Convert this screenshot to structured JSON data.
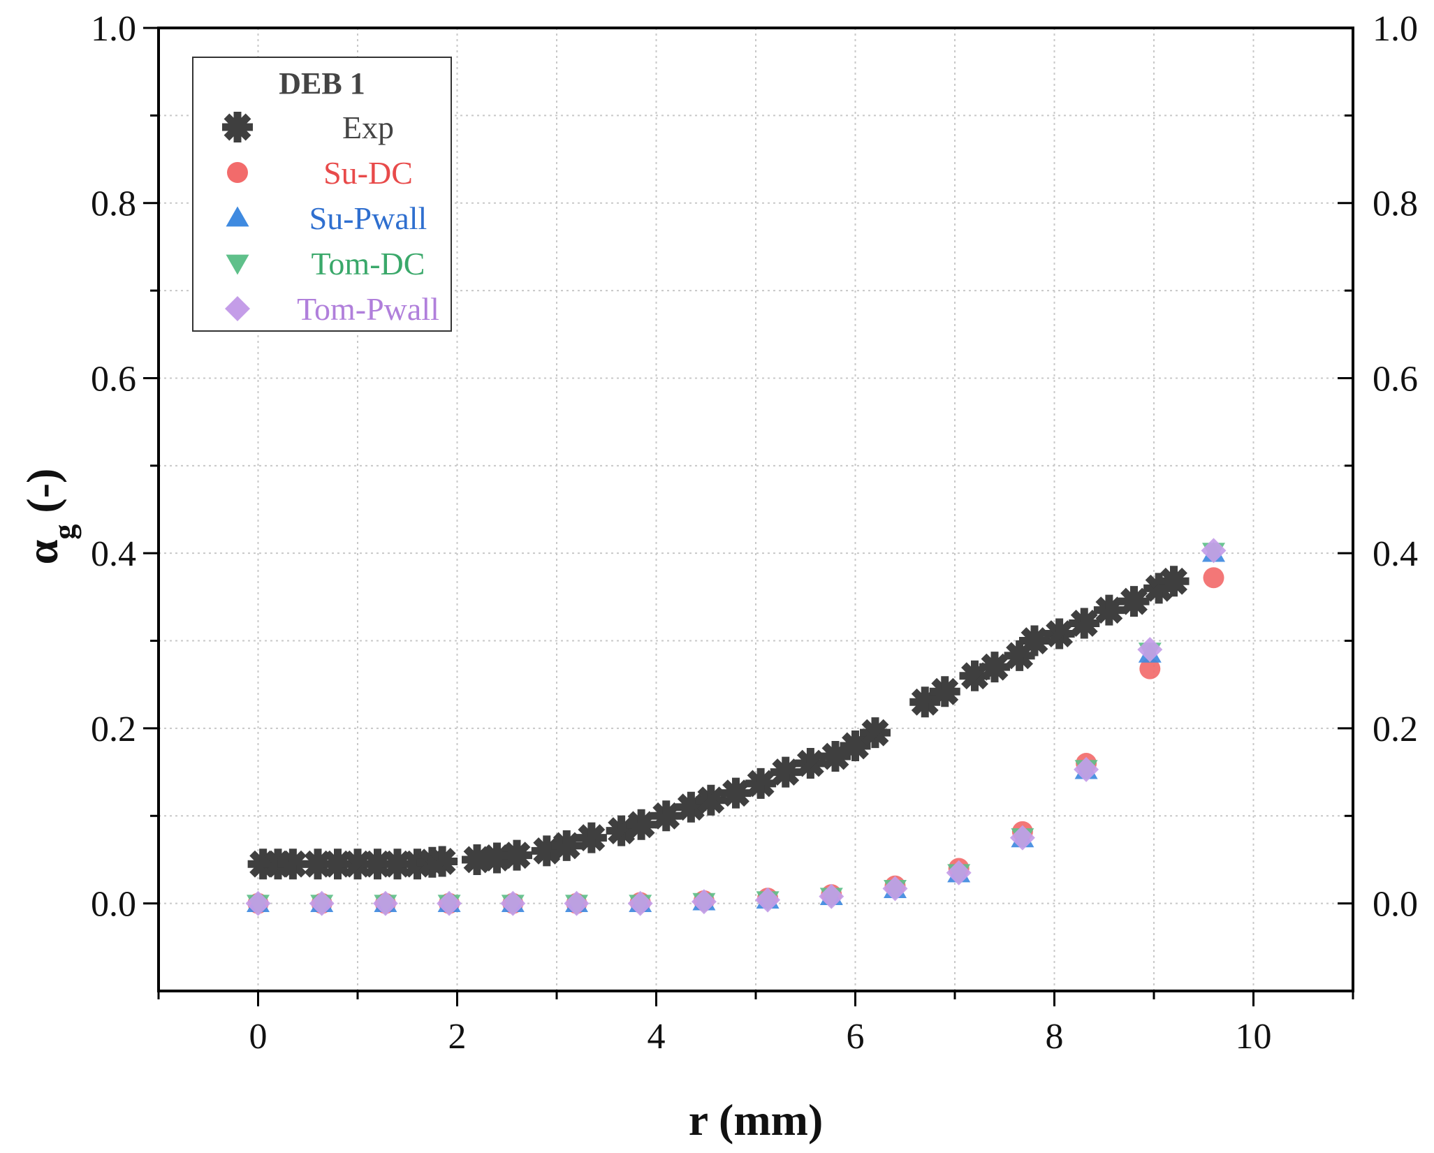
{
  "chart_data": {
    "type": "scatter",
    "title": "",
    "xlabel": "r (mm)",
    "ylabel_symbol": "α",
    "ylabel_subscript": "g",
    "ylabel_unit": "(-)",
    "xlim": [
      -1,
      11
    ],
    "ylim": [
      -0.1,
      1.0
    ],
    "x_ticks": [
      0,
      2,
      4,
      6,
      8,
      10
    ],
    "x_tick_labels": [
      "0",
      "2",
      "4",
      "6",
      "8",
      "10"
    ],
    "y_ticks": [
      0.0,
      0.2,
      0.4,
      0.6,
      0.8,
      1.0
    ],
    "y_tick_labels": [
      "0.0",
      "0.2",
      "0.4",
      "0.6",
      "0.8",
      "1.0"
    ],
    "right_y_tick_labels": [
      "0.0",
      "0.2",
      "0.4",
      "0.6",
      "0.8",
      "1.0"
    ],
    "grid": true,
    "legend": {
      "title": "DEB 1",
      "placement": "top-left"
    },
    "series": [
      {
        "name": "Exp",
        "marker": "asterisk",
        "color": "#3f3f3f",
        "text_color": "#444444",
        "x": [
          0.05,
          0.2,
          0.35,
          0.6,
          0.8,
          1.0,
          1.2,
          1.4,
          1.6,
          1.75,
          1.85,
          2.2,
          2.4,
          2.6,
          2.9,
          3.1,
          3.35,
          3.65,
          3.85,
          4.1,
          4.35,
          4.55,
          4.8,
          5.05,
          5.3,
          5.55,
          5.8,
          6.0,
          6.2,
          6.7,
          6.9,
          7.2,
          7.4,
          7.65,
          7.8,
          8.05,
          8.3,
          8.55,
          8.8,
          9.05,
          9.2
        ],
        "y": [
          0.045,
          0.045,
          0.045,
          0.045,
          0.045,
          0.045,
          0.045,
          0.045,
          0.045,
          0.047,
          0.048,
          0.05,
          0.052,
          0.055,
          0.06,
          0.066,
          0.075,
          0.083,
          0.09,
          0.1,
          0.11,
          0.118,
          0.126,
          0.137,
          0.15,
          0.16,
          0.168,
          0.18,
          0.195,
          0.23,
          0.242,
          0.26,
          0.27,
          0.283,
          0.3,
          0.308,
          0.32,
          0.335,
          0.345,
          0.36,
          0.368
        ]
      },
      {
        "name": "Su-DC",
        "marker": "circle",
        "color": "#f26b6b",
        "text_color": "#e84a4a",
        "x": [
          0.0,
          0.64,
          1.28,
          1.92,
          2.56,
          3.2,
          3.84,
          4.48,
          5.12,
          5.76,
          6.4,
          7.04,
          7.68,
          8.32,
          8.96,
          9.6
        ],
        "y": [
          0.0,
          0.0,
          0.0,
          0.0,
          0.0,
          0.0,
          0.001,
          0.003,
          0.006,
          0.01,
          0.02,
          0.04,
          0.082,
          0.16,
          0.268,
          0.372
        ]
      },
      {
        "name": "Su-Pwall",
        "marker": "triangle-up",
        "color": "#3f8ae0",
        "text_color": "#2f6fcf",
        "x": [
          0.0,
          0.64,
          1.28,
          1.92,
          2.56,
          3.2,
          3.84,
          4.48,
          5.12,
          5.76,
          6.4,
          7.04,
          7.68,
          8.32,
          8.96,
          9.6
        ],
        "y": [
          0.0,
          0.0,
          0.0,
          0.0,
          0.0,
          0.0,
          0.0,
          0.002,
          0.004,
          0.008,
          0.016,
          0.034,
          0.074,
          0.152,
          0.285,
          0.4
        ]
      },
      {
        "name": "Tom-DC",
        "marker": "triangle-down",
        "color": "#5fc08a",
        "text_color": "#3aa86a",
        "x": [
          0.0,
          0.64,
          1.28,
          1.92,
          2.56,
          3.2,
          3.84,
          4.48,
          5.12,
          5.76,
          6.4,
          7.04,
          7.68,
          8.32,
          8.96,
          9.6
        ],
        "y": [
          0.0,
          0.0,
          0.0,
          0.0,
          0.0,
          0.0,
          0.0,
          0.002,
          0.004,
          0.008,
          0.017,
          0.035,
          0.076,
          0.154,
          0.288,
          0.402
        ]
      },
      {
        "name": "Tom-Pwall",
        "marker": "diamond",
        "color": "#c49de8",
        "text_color": "#b07fdb",
        "x": [
          0.0,
          0.64,
          1.28,
          1.92,
          2.56,
          3.2,
          3.84,
          4.48,
          5.12,
          5.76,
          6.4,
          7.04,
          7.68,
          8.32,
          8.96,
          9.6
        ],
        "y": [
          0.0,
          0.0,
          0.0,
          0.0,
          0.0,
          0.0,
          0.0,
          0.002,
          0.004,
          0.008,
          0.017,
          0.035,
          0.075,
          0.153,
          0.29,
          0.403
        ]
      }
    ]
  }
}
